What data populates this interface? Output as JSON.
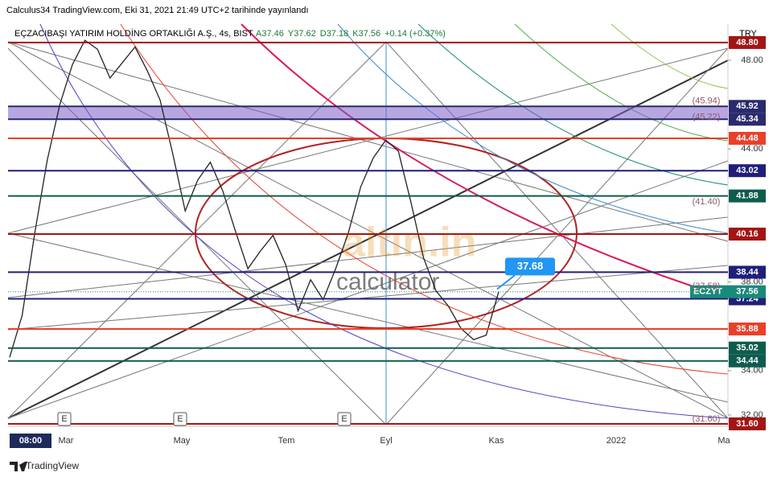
{
  "header": {
    "published": "Calculus34 TradingView.com, Eki 31, 2021 21:49 UTC+2 tarihinde yayınlandı",
    "symbol": "EÇZACIBAŞI YATIRIM HOLDİNG ORTAKLIĞI A.Ş., 4s, BIST",
    "ohlc": [
      "A37.46",
      "Y37.62",
      "D37.18",
      "K37.56",
      "+0.14 (+0.37%)"
    ],
    "currency": "TRY"
  },
  "chart_data": {
    "type": "line",
    "series": [
      {
        "name": "ECZYT",
        "color": "#222222",
        "values": [
          34.6,
          36.5,
          40.2,
          43.5,
          46.0,
          47.8,
          48.9,
          48.5,
          47.2,
          47.9,
          48.6,
          47.5,
          46.2,
          43.8,
          41.2,
          42.6,
          43.4,
          42.1,
          40.3,
          38.6,
          39.4,
          40.1,
          38.8,
          36.7,
          38.1,
          37.2,
          38.6,
          40.2,
          42.3,
          43.6,
          44.4,
          43.9,
          41.6,
          39.1,
          37.6,
          36.9,
          35.9,
          35.4,
          35.6,
          37.56
        ]
      }
    ],
    "ylim": [
      31.49,
      49.63
    ],
    "yticks": [
      {
        "value": 48,
        "label": "48.00"
      },
      {
        "value": 44,
        "label": "44.00"
      },
      {
        "value": 38,
        "label": "38.00"
      },
      {
        "value": 34,
        "label": "34.00"
      },
      {
        "value": 32,
        "label": "32.00"
      }
    ],
    "levels": [
      {
        "value": 48.8,
        "label": "48.80",
        "color": "#a31515"
      },
      {
        "value": 45.92,
        "label": "45.92",
        "color": "#2a2a6e"
      },
      {
        "value": 45.34,
        "label": "45.34",
        "color": "#2a2a6e"
      },
      {
        "value": 44.48,
        "label": "44.48",
        "color": "#e8402a"
      },
      {
        "value": 43.02,
        "label": "43.02",
        "color": "#1f1f7a"
      },
      {
        "value": 41.88,
        "label": "41.88",
        "color": "#0e5c4e"
      },
      {
        "value": 40.16,
        "label": "40.16",
        "color": "#a31515"
      },
      {
        "value": 38.44,
        "label": "38.44",
        "color": "#1f1f7a"
      },
      {
        "value": 37.24,
        "label": "37.24",
        "color": "#1f1f7a"
      },
      {
        "value": 35.88,
        "label": "35.88",
        "color": "#e8402a"
      },
      {
        "value": 35.02,
        "label": "35.02",
        "color": "#0e5c4e"
      },
      {
        "value": 34.44,
        "label": "34.44",
        "color": "#0e5c4e"
      },
      {
        "value": 31.6,
        "label": "31.60",
        "color": "#a31515"
      }
    ],
    "last_price": {
      "name": "ECZYT",
      "value": 37.56,
      "label": "37.56",
      "color": "#1a8a7a"
    },
    "annotations": [
      {
        "value": 45.94,
        "label": "(45.94)"
      },
      {
        "value": 45.22,
        "label": "(45.22)"
      },
      {
        "value": 41.4,
        "label": "(41.40)"
      },
      {
        "value": 37.58,
        "label": "(37.58)"
      },
      {
        "value": 31.6,
        "label": "(31.60)"
      }
    ],
    "callout": 37.68,
    "events": [
      "E",
      "E",
      "E"
    ],
    "x_labels": [
      "08:00",
      "Mar",
      "May",
      "Tem",
      "Eyl",
      "Kas",
      "2022",
      "Ma"
    ],
    "watermark": [
      "altın.in",
      "calculator"
    ],
    "footer": "TradingView"
  }
}
